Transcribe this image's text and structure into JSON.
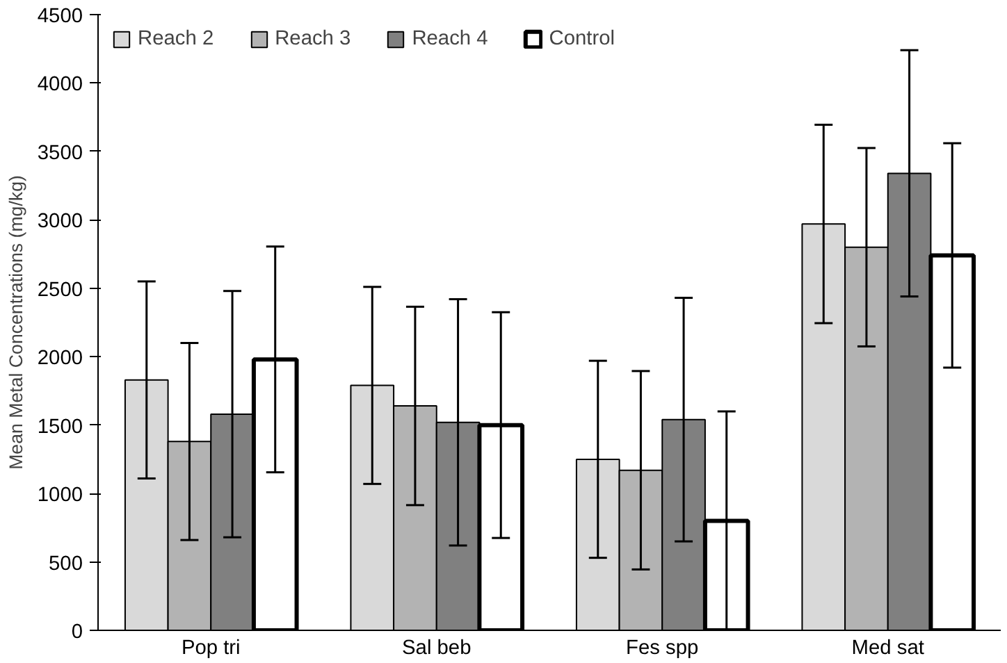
{
  "chart_data": {
    "type": "bar",
    "ylabel": "Mean Metal Concentrations (mg/kg)",
    "categories": [
      "Pop tri",
      "Sal beb",
      "Fes spp",
      "Med sat"
    ],
    "series": [
      {
        "name": "Reach 2",
        "color": "#d9d9d9",
        "values": [
          1830,
          1790,
          1250,
          2970
        ],
        "errors": [
          720,
          720,
          720,
          725
        ]
      },
      {
        "name": "Reach 3",
        "color": "#b3b3b3",
        "values": [
          1380,
          1640,
          1170,
          2800
        ],
        "errors": [
          720,
          725,
          725,
          725
        ]
      },
      {
        "name": "Reach 4",
        "color": "#808080",
        "values": [
          1580,
          1520,
          1540,
          3340
        ],
        "errors": [
          900,
          900,
          890,
          900
        ]
      },
      {
        "name": "Control",
        "color": "#ffffff",
        "values": [
          1980,
          1500,
          800,
          2740
        ],
        "errors": [
          825,
          825,
          800,
          820
        ]
      }
    ],
    "ylim": [
      0,
      4500
    ],
    "yticks": [
      0,
      500,
      1000,
      1500,
      2000,
      2500,
      3000,
      3500,
      4000,
      4500
    ],
    "grid": false,
    "legend": "top"
  }
}
